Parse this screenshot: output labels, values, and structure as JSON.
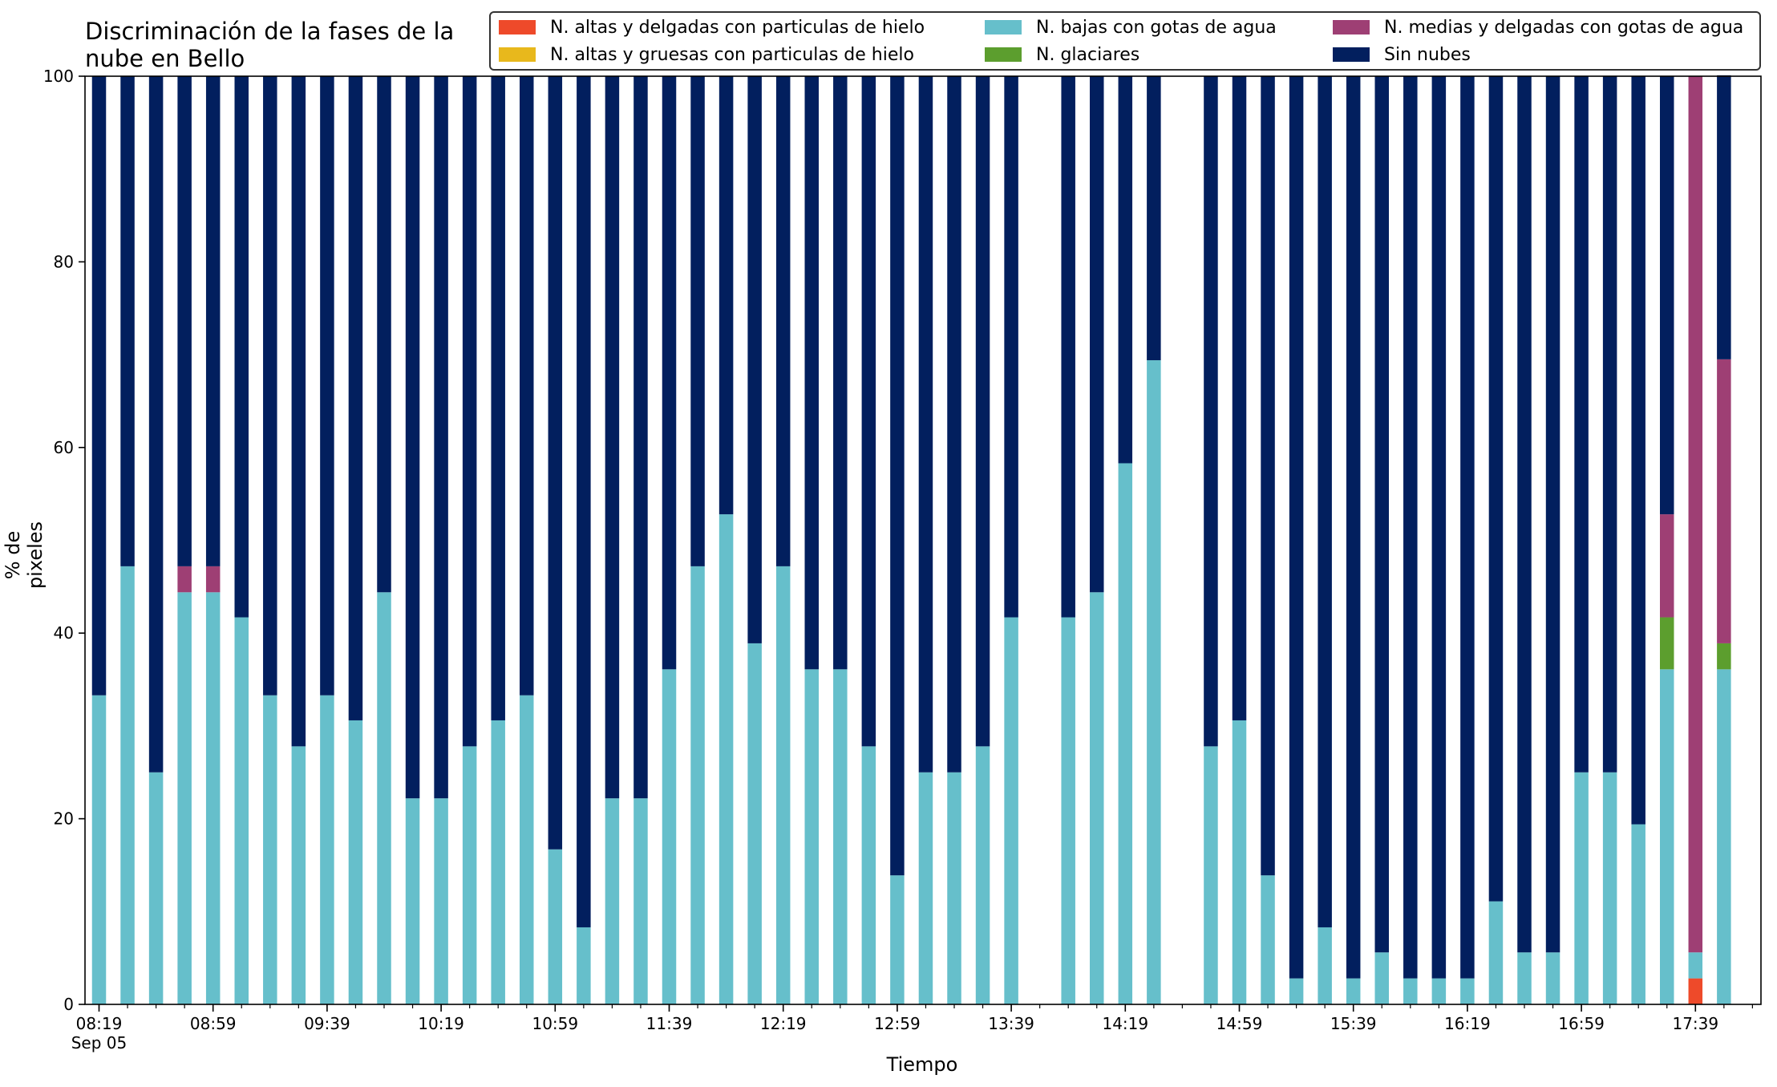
{
  "chart_data": {
    "type": "bar",
    "stacked": true,
    "title": "Discriminación de la fases de la\nnube en Bello",
    "xlabel": "Tiempo",
    "ylabel": "% de pixeles",
    "ylim": [
      0,
      100
    ],
    "yticks": [
      0,
      20,
      40,
      60,
      80,
      100
    ],
    "grid": false,
    "legend_position": "top-right",
    "x_tick_labels": [
      {
        "slot": 0,
        "label": "08:19",
        "sub": "Sep 05"
      },
      {
        "slot": 4,
        "label": "08:59"
      },
      {
        "slot": 8,
        "label": "09:39"
      },
      {
        "slot": 12,
        "label": "10:19"
      },
      {
        "slot": 16,
        "label": "10:59"
      },
      {
        "slot": 20,
        "label": "11:39"
      },
      {
        "slot": 24,
        "label": "12:19"
      },
      {
        "slot": 28,
        "label": "12:59"
      },
      {
        "slot": 32,
        "label": "13:39"
      },
      {
        "slot": 36,
        "label": "14:19"
      },
      {
        "slot": 40,
        "label": "14:59"
      },
      {
        "slot": 44,
        "label": "15:39"
      },
      {
        "slot": 48,
        "label": "16:19"
      },
      {
        "slot": 52,
        "label": "16:59"
      },
      {
        "slot": 56,
        "label": "17:39"
      }
    ],
    "x_slot_count": 59,
    "x": [
      "08:19",
      "08:29",
      "08:39",
      "08:49",
      "08:59",
      "09:09",
      "09:19",
      "09:29",
      "09:39",
      "09:49",
      "09:59",
      "10:09",
      "10:19",
      "10:29",
      "10:39",
      "10:49",
      "10:59",
      "11:09",
      "11:19",
      "11:29",
      "11:39",
      "11:49",
      "11:59",
      "12:09",
      "12:19",
      "12:29",
      "12:39",
      "12:49",
      "12:59",
      "13:09",
      "13:19",
      "13:29",
      "13:39",
      "13:59",
      "14:09",
      "14:19",
      "14:29",
      "14:49",
      "14:59",
      "15:09",
      "15:19",
      "15:29",
      "15:39",
      "15:49",
      "15:59",
      "16:09",
      "16:19",
      "16:29",
      "16:39",
      "16:49",
      "16:59",
      "17:09",
      "17:19",
      "17:29",
      "17:39",
      "17:49"
    ],
    "series": [
      {
        "name": "N. altas y delgadas con particulas de hielo",
        "color": "#ee4a2a",
        "values": [
          0,
          0,
          0,
          0,
          0,
          0,
          0,
          0,
          0,
          0,
          0,
          0,
          0,
          0,
          0,
          0,
          0,
          0,
          0,
          0,
          0,
          0,
          0,
          0,
          0,
          0,
          0,
          0,
          0,
          0,
          0,
          0,
          0,
          0,
          0,
          0,
          0,
          0,
          0,
          0,
          0,
          0,
          0,
          0,
          0,
          0,
          0,
          0,
          0,
          0,
          0,
          0,
          0,
          0,
          2.8,
          0
        ]
      },
      {
        "name": "N. altas y gruesas con particulas de hielo",
        "color": "#e8b81c",
        "values": [
          0,
          0,
          0,
          0,
          0,
          0,
          0,
          0,
          0,
          0,
          0,
          0,
          0,
          0,
          0,
          0,
          0,
          0,
          0,
          0,
          0,
          0,
          0,
          0,
          0,
          0,
          0,
          0,
          0,
          0,
          0,
          0,
          0,
          0,
          0,
          0,
          0,
          0,
          0,
          0,
          0,
          0,
          0,
          0,
          0,
          0,
          0,
          0,
          0,
          0,
          0,
          0,
          0,
          0,
          0,
          0
        ]
      },
      {
        "name": "N. bajas con gotas de agua",
        "color": "#66bfcb",
        "values": [
          33.3,
          47.2,
          25,
          44.4,
          44.4,
          41.7,
          33.3,
          27.8,
          33.3,
          30.6,
          44.4,
          22.2,
          22.2,
          27.8,
          30.6,
          33.3,
          16.7,
          8.3,
          22.2,
          22.2,
          36.1,
          47.2,
          52.8,
          38.9,
          47.2,
          36.1,
          36.1,
          27.8,
          13.9,
          25,
          25,
          27.8,
          41.7,
          41.7,
          44.4,
          58.3,
          69.4,
          27.8,
          30.6,
          13.9,
          2.8,
          8.3,
          2.8,
          5.6,
          2.8,
          2.8,
          2.8,
          11.1,
          5.6,
          5.6,
          25,
          25,
          19.4,
          36.1,
          2.8,
          36.1
        ]
      },
      {
        "name": "N. glaciares",
        "color": "#5c9e2e",
        "values": [
          0,
          0,
          0,
          0,
          0,
          0,
          0,
          0,
          0,
          0,
          0,
          0,
          0,
          0,
          0,
          0,
          0,
          0,
          0,
          0,
          0,
          0,
          0,
          0,
          0,
          0,
          0,
          0,
          0,
          0,
          0,
          0,
          0,
          0,
          0,
          0,
          0,
          0,
          0,
          0,
          0,
          0,
          0,
          0,
          0,
          0,
          0,
          0,
          0,
          0,
          0,
          0,
          0,
          5.6,
          0,
          2.8
        ]
      },
      {
        "name": "N. medias y delgadas con gotas de agua",
        "color": "#9e3f74",
        "values": [
          0,
          0,
          0,
          2.8,
          2.8,
          0,
          0,
          0,
          0,
          0,
          0,
          0,
          0,
          0,
          0,
          0,
          0,
          0,
          0,
          0,
          0,
          0,
          0,
          0,
          0,
          0,
          0,
          0,
          0,
          0,
          0,
          0,
          0,
          0,
          0,
          0,
          0,
          0,
          0,
          0,
          0,
          0,
          0,
          0,
          0,
          0,
          0,
          0,
          0,
          0,
          0,
          0,
          0,
          11.1,
          94.4,
          30.6
        ]
      },
      {
        "name": "Sin nubes",
        "color": "#021f5e",
        "values": [
          66.7,
          52.8,
          75,
          52.8,
          52.8,
          58.3,
          66.7,
          72.2,
          66.7,
          69.4,
          55.6,
          77.8,
          77.8,
          72.2,
          69.4,
          66.7,
          83.3,
          91.7,
          77.8,
          77.8,
          63.9,
          52.8,
          47.2,
          61.1,
          52.8,
          63.9,
          63.9,
          72.2,
          86.1,
          75,
          75,
          72.2,
          58.3,
          58.3,
          55.6,
          41.7,
          30.6,
          72.2,
          69.4,
          86.1,
          97.2,
          91.7,
          97.2,
          94.4,
          97.2,
          97.2,
          97.2,
          88.9,
          94.4,
          94.4,
          75,
          75,
          80.6,
          47.2,
          0,
          30.6
        ]
      }
    ]
  }
}
